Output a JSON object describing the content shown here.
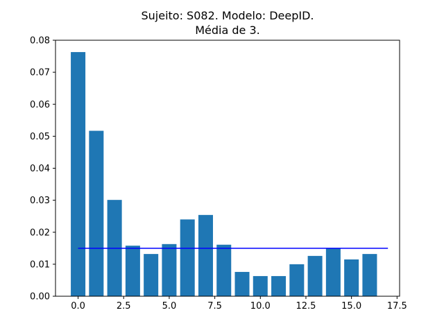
{
  "chart_data": {
    "type": "bar",
    "title_line1": "Sujeito: S082. Modelo: DeepID.",
    "title_line2": "Média de 3.",
    "xlabel": "",
    "ylabel": "",
    "x": [
      0,
      1,
      2,
      3,
      4,
      5,
      6,
      7,
      8,
      9,
      10,
      11,
      12,
      13,
      14,
      15,
      16
    ],
    "values": [
      0.0763,
      0.0517,
      0.0301,
      0.0158,
      0.0132,
      0.0163,
      0.024,
      0.0254,
      0.0161,
      0.0076,
      0.0063,
      0.0063,
      0.01,
      0.0126,
      0.015,
      0.0115,
      0.0132
    ],
    "bar_width": 0.8,
    "bar_color": "#1f77b4",
    "reference_line": {
      "value": 0.015,
      "x_start": 0,
      "x_end": 17,
      "color": "#0000ff"
    },
    "xlim": [
      -1.24,
      17.64
    ],
    "ylim": [
      0,
      0.08
    ],
    "xticks": [
      0,
      2.5,
      5,
      7.5,
      10,
      12.5,
      15,
      17.5
    ],
    "xtick_labels": [
      "0.0",
      "2.5",
      "5.0",
      "7.5",
      "10.0",
      "12.5",
      "15.0",
      "17.5"
    ],
    "yticks": [
      0,
      0.01,
      0.02,
      0.03,
      0.04,
      0.05,
      0.06,
      0.07,
      0.08
    ],
    "ytick_labels": [
      "0.00",
      "0.01",
      "0.02",
      "0.03",
      "0.04",
      "0.05",
      "0.06",
      "0.07",
      "0.08"
    ],
    "grid": false,
    "legend": "none"
  }
}
